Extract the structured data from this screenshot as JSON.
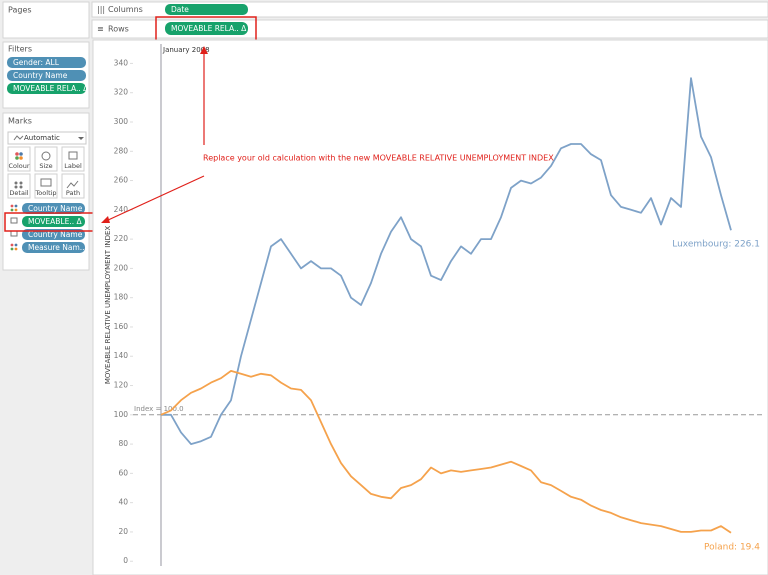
{
  "pages_panel": {
    "title": "Pages"
  },
  "filters": {
    "title": "Filters",
    "items": [
      "Gender: ALL",
      "Country Name",
      "MOVEABLE RELA.. Δ"
    ]
  },
  "marks": {
    "title": "Marks",
    "mark_type": "Automatic",
    "buttons": [
      "Colour",
      "Size",
      "Label",
      "Detail",
      "Tooltip",
      "Path"
    ],
    "fields": [
      "Country Name",
      "MOVEABLE.. Δ",
      "Country Name",
      "Measure Nam.."
    ]
  },
  "shelves": {
    "columns": {
      "label": "Columns",
      "pill": "Date"
    },
    "rows": {
      "label": "Rows",
      "pill": "MOVEABLE RELA.. Δ"
    }
  },
  "callout": "Replace your old calculation with the new MOVEABLE RELATIVE UNEMPLOYMENT INDEX",
  "chart_data": {
    "type": "line",
    "y_label": "MOVEABLE RELATIVE UNEMPLOYMENT INDEX",
    "annotation": "January 2008",
    "reference_line": {
      "value": 100,
      "label": "Index = 100.0"
    },
    "ylim": [
      -6,
      356
    ],
    "yticks": [
      0,
      20,
      40,
      60,
      80,
      100,
      120,
      140,
      160,
      180,
      200,
      220,
      240,
      260,
      280,
      300,
      320,
      340
    ],
    "grid": false,
    "series": [
      {
        "name": "Luxembourg",
        "color": "#7ea2c8",
        "end_label": "Luxembourg: 226.1",
        "values": [
          100,
          100,
          88,
          80,
          82,
          85,
          100,
          110,
          140,
          165,
          190,
          215,
          220,
          210,
          200,
          205,
          200,
          200,
          195,
          180,
          175,
          190,
          210,
          225,
          235,
          220,
          215,
          195,
          192,
          205,
          215,
          210,
          220,
          220,
          235,
          255,
          260,
          258,
          262,
          270,
          282,
          285,
          285,
          278,
          274,
          250,
          242,
          240,
          238,
          248,
          230,
          248,
          242,
          330,
          290,
          276,
          250,
          226.1
        ]
      },
      {
        "name": "Poland",
        "color": "#f5a24c",
        "end_label": "Poland: 19.4",
        "values": [
          100,
          103,
          110,
          115,
          118,
          122,
          125,
          130,
          128,
          126,
          128,
          127,
          122,
          118,
          117,
          110,
          95,
          80,
          67,
          58,
          52,
          46,
          44,
          43,
          50,
          52,
          56,
          64,
          60,
          62,
          61,
          62,
          63,
          64,
          66,
          68,
          65,
          62,
          54,
          52,
          48,
          44,
          42,
          38,
          35,
          33,
          30,
          28,
          26,
          25,
          24,
          22,
          20,
          20,
          21,
          21,
          24,
          19.4
        ]
      }
    ]
  }
}
